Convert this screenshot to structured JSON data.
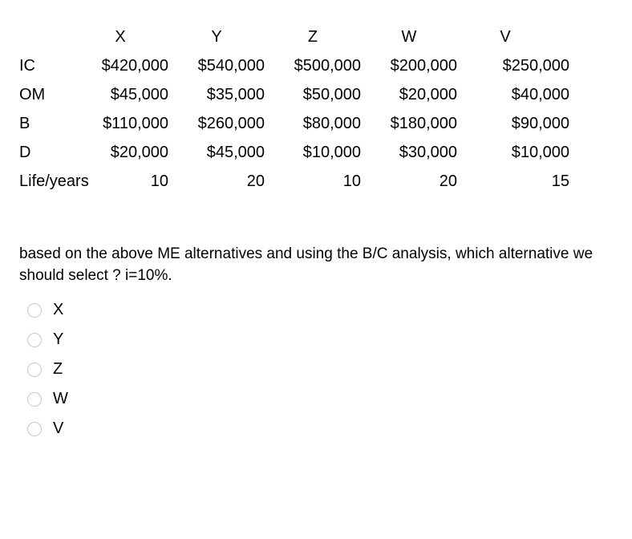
{
  "table": {
    "header_blank": "",
    "columns": [
      "X",
      "Y",
      "Z",
      "W",
      "V"
    ],
    "rows": [
      {
        "label": "IC",
        "cells": [
          "$420,000",
          "$540,000",
          "$500,000",
          "$200,000",
          "$250,000"
        ]
      },
      {
        "label": "OM",
        "cells": [
          "$45,000",
          "$35,000",
          "$50,000",
          "$20,000",
          "$40,000"
        ]
      },
      {
        "label": "B",
        "cells": [
          "$110,000",
          "$260,000",
          "$80,000",
          "$180,000",
          "$90,000"
        ]
      },
      {
        "label": "D",
        "cells": [
          "$20,000",
          "$45,000",
          "$10,000",
          "$30,000",
          "$10,000"
        ]
      },
      {
        "label": "Life/years",
        "cells": [
          "10",
          "20",
          "10",
          "20",
          "15"
        ]
      }
    ]
  },
  "question": "based on the above ME alternatives and using the B/C analysis, which alternative  we should select ? i=10%.",
  "options": [
    "X",
    "Y",
    "Z",
    "W",
    "V"
  ]
}
